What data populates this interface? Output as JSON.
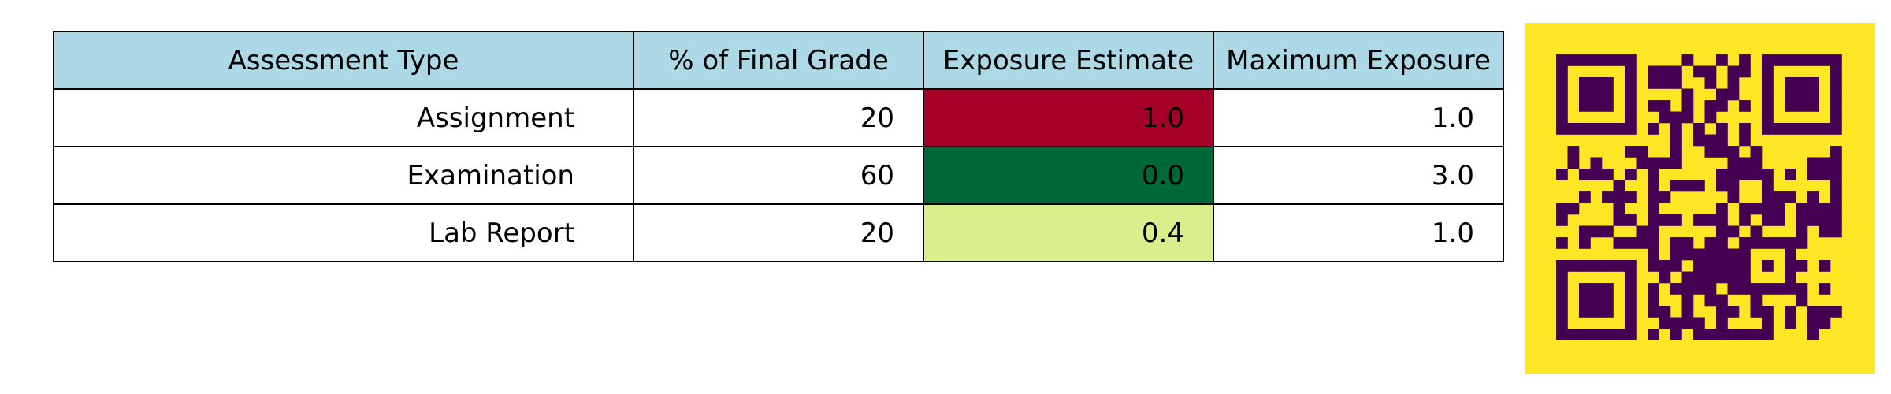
{
  "chart_data": {
    "type": "table",
    "header_color": "#add8e6",
    "columns": [
      "Assessment Type",
      "% of Final Grade",
      "Exposure Estimate",
      "Maximum Exposure"
    ],
    "rows": [
      {
        "type": "Assignment",
        "pct": "20",
        "estimate": "1.0",
        "max": "1.0",
        "estimate_color": "#a50026"
      },
      {
        "type": "Examination",
        "pct": "60",
        "estimate": "0.0",
        "max": "3.0",
        "estimate_color": "#006837"
      },
      {
        "type": "Lab Report",
        "pct": "20",
        "estimate": "0.4",
        "max": "1.0",
        "estimate_color": "#d9ef8b"
      }
    ]
  },
  "qr_code": {
    "icon": "qr-code-icon",
    "background_color": "#fde725",
    "module_color": "#440154"
  }
}
